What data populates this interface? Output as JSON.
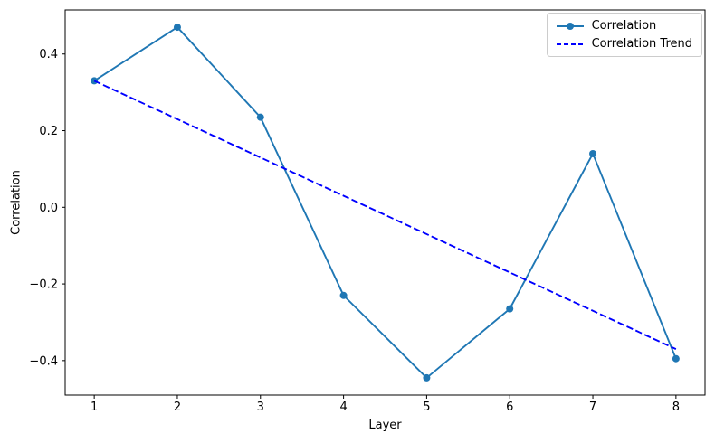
{
  "figure": {
    "background": "#ffffff",
    "axis_color": "#000000"
  },
  "chart_data": {
    "type": "line",
    "title": "",
    "xlabel": "Layer",
    "ylabel": "Correlation",
    "xlim": [
      0.65,
      8.35
    ],
    "ylim": [
      -0.49,
      0.515
    ],
    "grid": false,
    "legend_position": "upper-right",
    "xticks": [
      1,
      2,
      3,
      4,
      5,
      6,
      7,
      8
    ],
    "xtick_labels": [
      "1",
      "2",
      "3",
      "4",
      "5",
      "6",
      "7",
      "8"
    ],
    "yticks": [
      -0.4,
      -0.2,
      0.0,
      0.2,
      0.4
    ],
    "ytick_labels": [
      "−0.4",
      "−0.2",
      "0.0",
      "0.2",
      "0.4"
    ],
    "series": [
      {
        "name": "Correlation",
        "style": "solid",
        "marker": "circle",
        "color": "#1f77b4",
        "x": [
          1,
          2,
          3,
          4,
          5,
          6,
          7,
          8
        ],
        "y": [
          0.33,
          0.47,
          0.235,
          -0.23,
          -0.445,
          -0.265,
          0.14,
          -0.395
        ]
      },
      {
        "name": "Correlation Trend",
        "style": "dashed",
        "marker": "none",
        "color": "#0000ff",
        "x": [
          1,
          8
        ],
        "y": [
          0.33,
          -0.37
        ]
      }
    ]
  }
}
